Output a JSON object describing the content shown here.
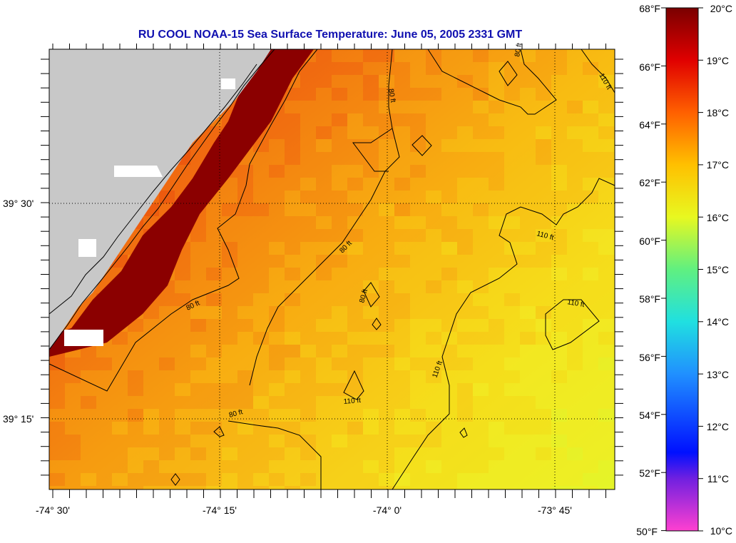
{
  "title": "RU COOL  NOAA-15  Sea Surface Temperature:  June 05, 2005 2331 GMT",
  "map": {
    "lon_labels": [
      "-74° 30'",
      "-74° 15'",
      "-74° 0'",
      "-73° 45'"
    ],
    "lat_labels": [
      "39° 30'",
      "39° 15'"
    ],
    "contour_labels": [
      "80 ft",
      "80 ft",
      "80 ft",
      "80 ft",
      "80 ft",
      "80 ft",
      "110 ft",
      "110 ft",
      "110 ft",
      "110 ft",
      "110 ft"
    ],
    "colors": {
      "land": "#c8c8c8",
      "cloud": "#ffffff",
      "dark_red": "#8b0000"
    }
  },
  "colorbar": {
    "fahrenheit_labels": [
      "68°F",
      "66°F",
      "64°F",
      "62°F",
      "60°F",
      "58°F",
      "56°F",
      "54°F",
      "52°F",
      "50°F"
    ],
    "celsius_labels": [
      "20°C",
      "19°C",
      "18°C",
      "17°C",
      "16°C",
      "15°C",
      "14°C",
      "13°C",
      "12°C",
      "11°C",
      "10°C"
    ]
  }
}
